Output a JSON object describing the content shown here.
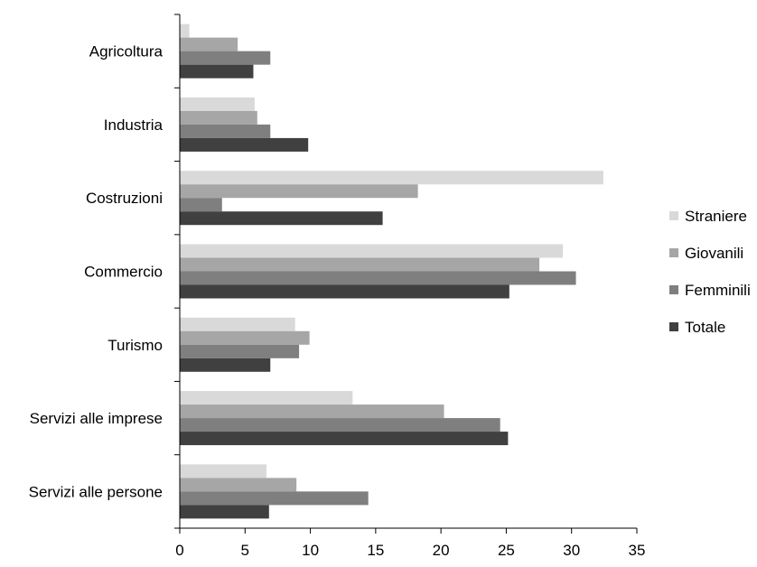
{
  "chart_data": {
    "type": "bar",
    "orientation": "horizontal",
    "categories": [
      "Agricoltura",
      "Industria",
      "Costruzioni",
      "Commercio",
      "Turismo",
      "Servizi alle imprese",
      "Servizi alle persone"
    ],
    "series": [
      {
        "name": "Straniere",
        "color": "#d9d9d9",
        "values": [
          0.7,
          5.7,
          32.4,
          29.3,
          8.8,
          13.2,
          6.6
        ]
      },
      {
        "name": "Giovanili",
        "color": "#a6a6a6",
        "values": [
          4.4,
          5.9,
          18.2,
          27.5,
          9.9,
          20.2,
          8.9
        ]
      },
      {
        "name": "Femminili",
        "color": "#7f7f7f",
        "values": [
          6.9,
          6.9,
          3.2,
          30.3,
          9.1,
          24.5,
          14.4
        ]
      },
      {
        "name": "Totale",
        "color": "#404040",
        "values": [
          5.6,
          9.8,
          15.5,
          25.2,
          6.9,
          25.1,
          6.8
        ]
      }
    ],
    "xlim": [
      0,
      35
    ],
    "xticks": [
      "0",
      "5",
      "10",
      "15",
      "20",
      "25",
      "30",
      "35"
    ],
    "title": "",
    "xlabel": "",
    "ylabel": "",
    "grid": false,
    "legend_position": "right"
  }
}
